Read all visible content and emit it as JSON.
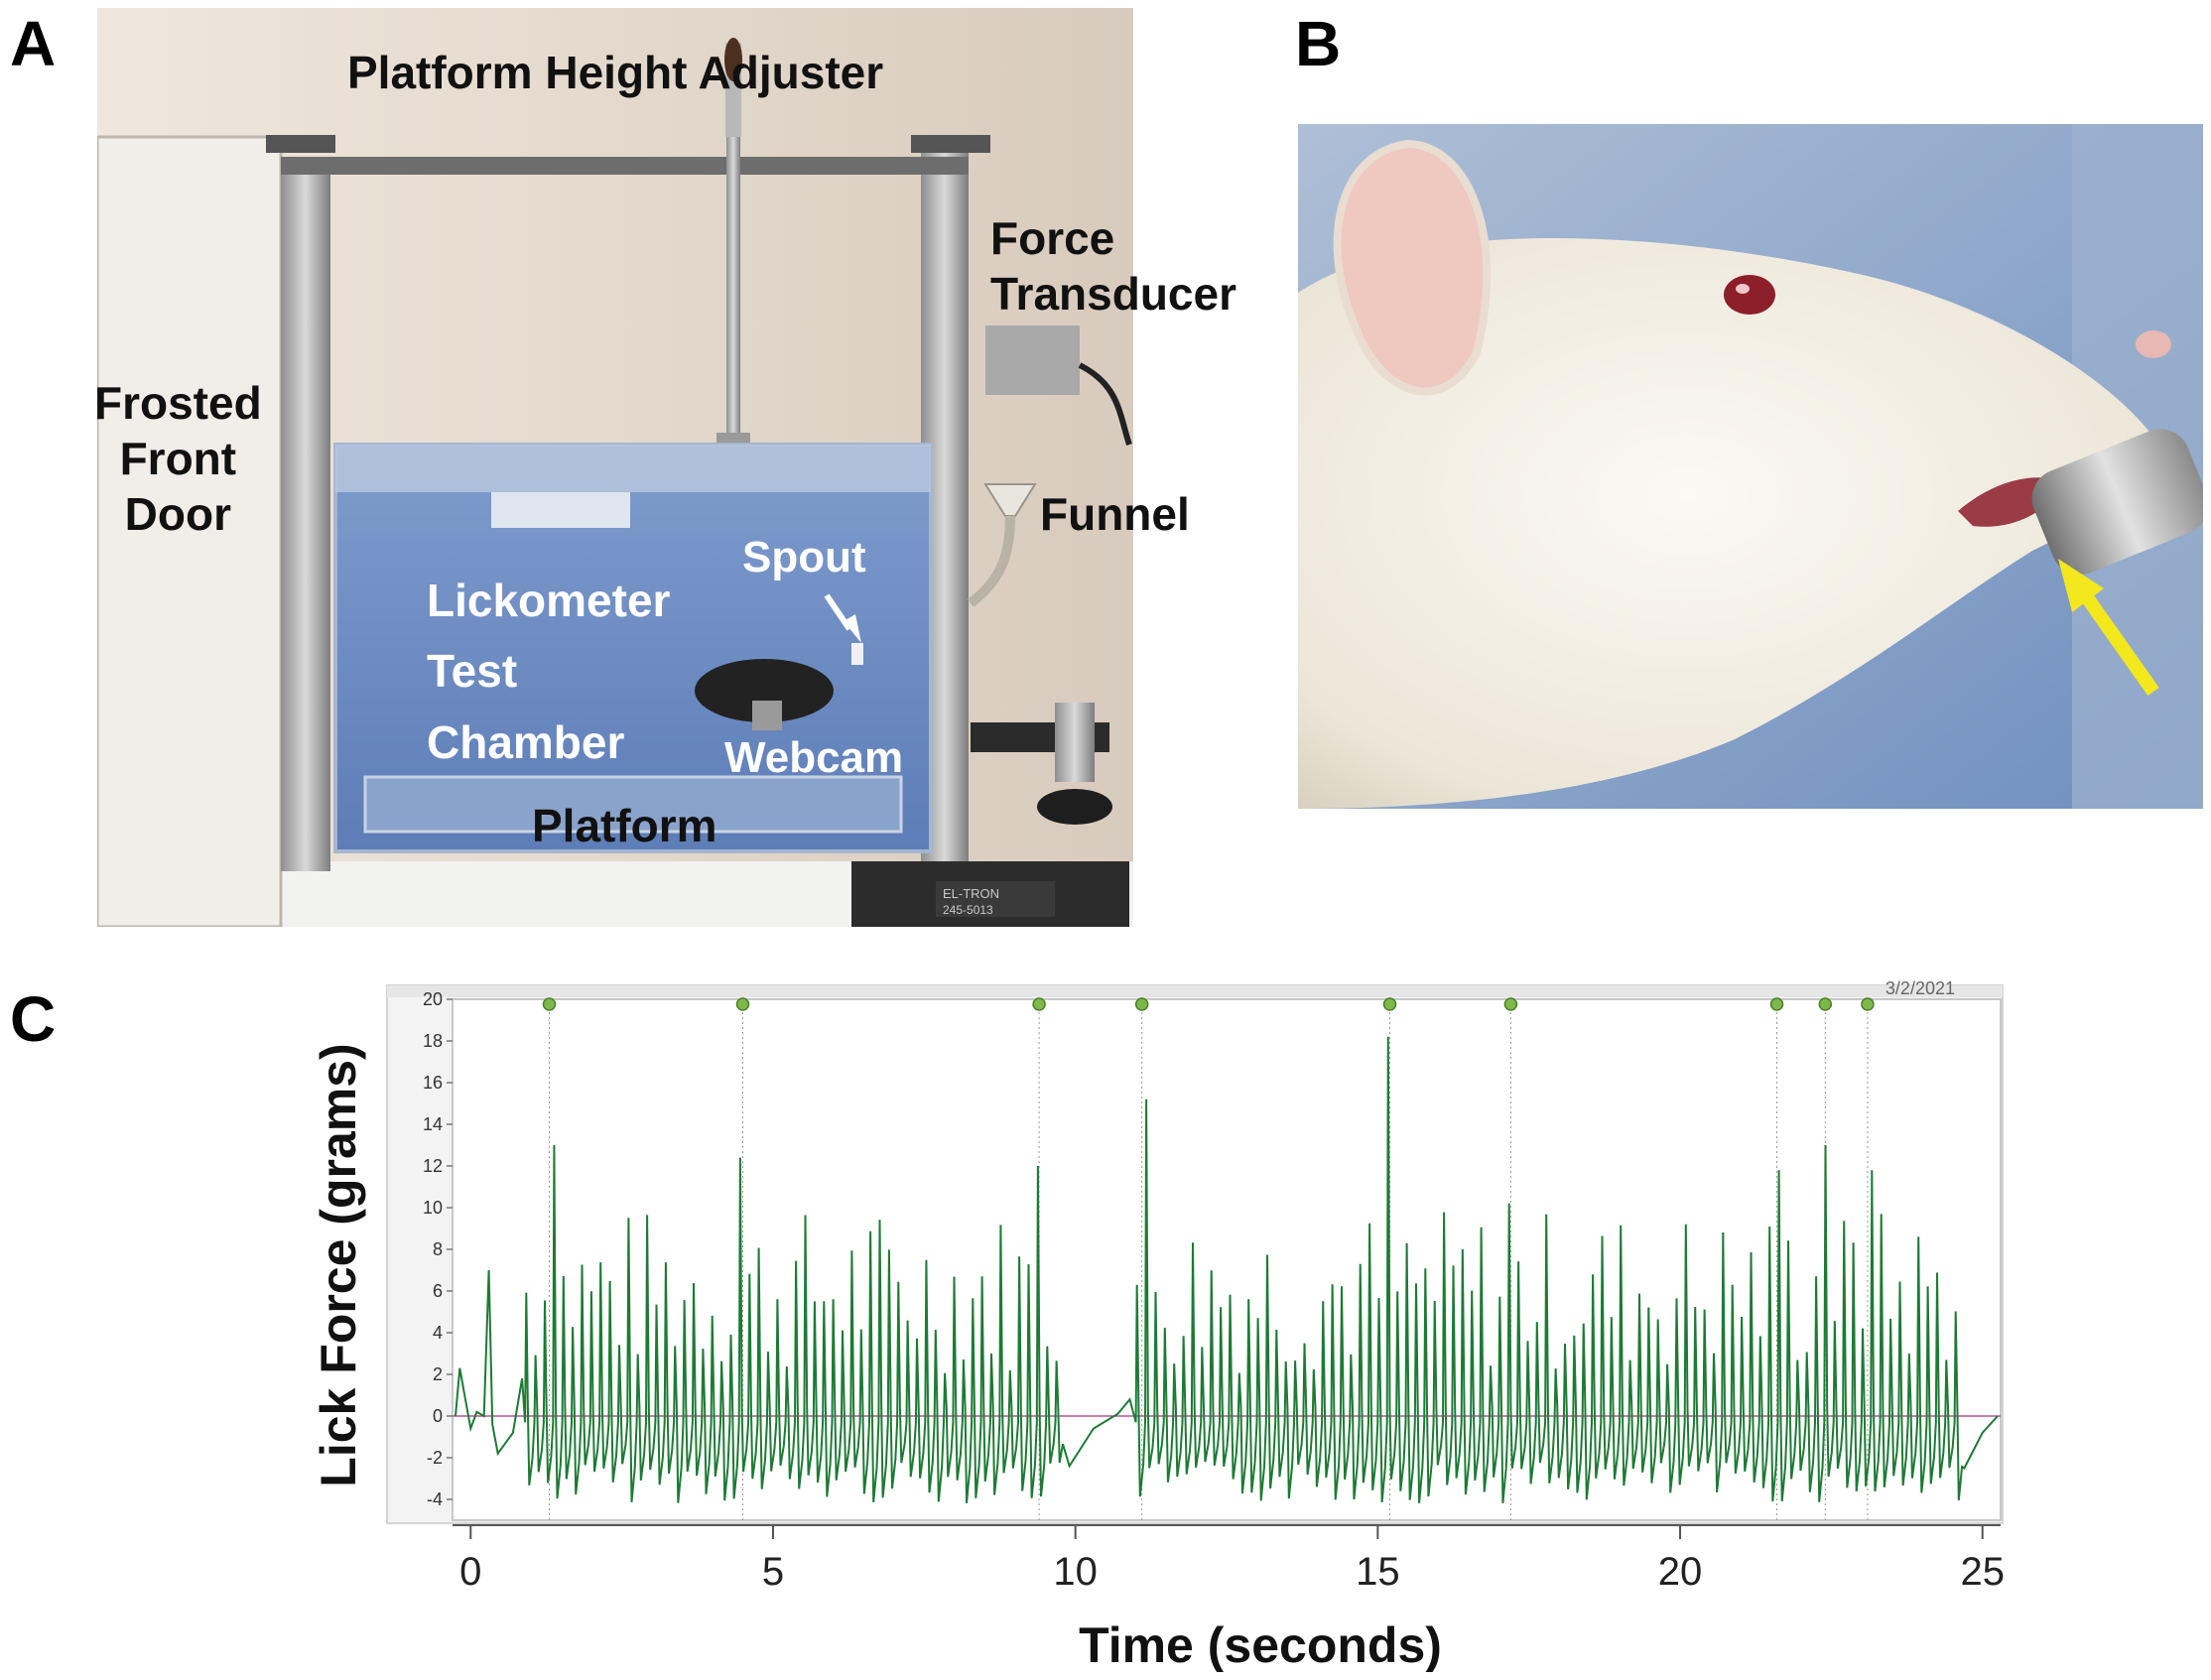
{
  "panels": {
    "a": {
      "letter": "A",
      "labels": {
        "platform_height_adjuster": "Platform Height Adjuster",
        "force_transducer": [
          "Force",
          "Transducer"
        ],
        "frosted_front_door": [
          "Frosted",
          "Front",
          "Door"
        ],
        "funnel": "Funnel",
        "spout": "Spout",
        "lickometer_test_chamber": [
          "Lickometer",
          "Test",
          "Chamber"
        ],
        "webcam": "Webcam",
        "platform": "Platform",
        "device_plate": [
          "EL-TRON",
          "245-5013"
        ]
      }
    },
    "b": {
      "letter": "B"
    },
    "c": {
      "letter": "C"
    }
  },
  "chart_data": {
    "type": "line",
    "title": "",
    "xlabel": "Time (seconds)",
    "ylabel": "Lick Force (grams)",
    "xlim": [
      -0.3,
      25.3
    ],
    "ylim": [
      -5,
      20
    ],
    "x_ticks": [
      0,
      5,
      10,
      15,
      20,
      25
    ],
    "y_ticks": [
      -4,
      -2,
      0,
      2,
      4,
      6,
      8,
      10,
      12,
      14,
      16,
      18,
      20
    ],
    "header_date": "3/2/2021",
    "marker_times": [
      1.3,
      4.5,
      9.4,
      11.1,
      15.2,
      17.2,
      21.6,
      22.4,
      23.1
    ],
    "series": [
      {
        "color": "#1e7a35",
        "bursts": [
          {
            "start": 0.9,
            "end": 9.8,
            "rate_hz": 6.5
          },
          {
            "start": 11.0,
            "end": 24.6,
            "rate_hz": 6.5
          }
        ],
        "notable_peaks": [
          {
            "t": 0.3,
            "v": 7.0
          },
          {
            "t": 1.3,
            "v": 13.0
          },
          {
            "t": 4.5,
            "v": 12.4
          },
          {
            "t": 9.4,
            "v": 12.0
          },
          {
            "t": 11.1,
            "v": 15.2
          },
          {
            "t": 15.2,
            "v": 18.2
          },
          {
            "t": 17.2,
            "v": 10.2
          },
          {
            "t": 21.6,
            "v": 11.8
          },
          {
            "t": 22.4,
            "v": 13.0
          },
          {
            "t": 23.1,
            "v": 11.8
          }
        ],
        "trough_min": -4.2
      }
    ],
    "colors": {
      "trace": "#1e7a35",
      "baseline": "#b5549c",
      "marker": "#7db94a",
      "plot_frame": "#c8c8c8"
    }
  }
}
